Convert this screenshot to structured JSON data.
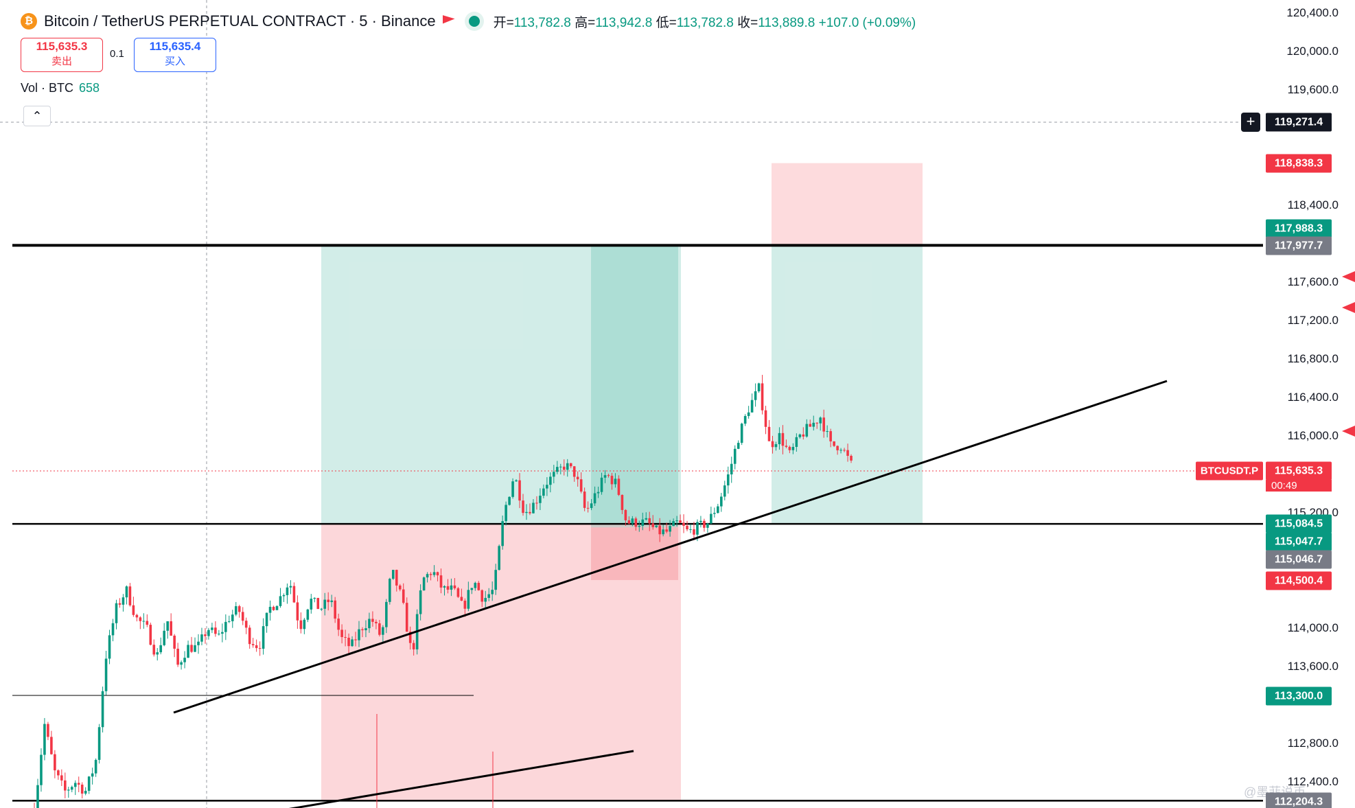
{
  "header": {
    "coin_icon": "bitcoin-icon",
    "symbol_title": "Bitcoin / TetherUS PERPETUAL CONTRACT · 5 · Binance",
    "ohlc": {
      "open_label": "开=",
      "open": "113,782.8",
      "high_label": "高=",
      "high": "113,942.8",
      "low_label": "低=",
      "low": "113,782.8",
      "close_label": "收=",
      "close": "113,889.8",
      "change": "+107.0 (+0.09%)"
    },
    "colors": {
      "up": "#089981",
      "down": "#f23645",
      "accent": "#2962ff"
    }
  },
  "trade": {
    "sell_price": "115,635.3",
    "sell_label": "卖出",
    "spread": "0.1",
    "buy_price": "115,635.4",
    "buy_label": "买入"
  },
  "volume": {
    "label": "Vol · BTC",
    "value": "658"
  },
  "price_axis": {
    "ticks": [
      "120,400.0",
      "120,000.0",
      "119,600.0",
      "118,400.0",
      "117,600.0",
      "117,200.0",
      "116,800.0",
      "116,400.0",
      "116,000.0",
      "115,200.0",
      "114,000.0",
      "113,600.0",
      "112,800.0",
      "112,400.0"
    ],
    "crosshair_price": "119,271.4",
    "labels": [
      {
        "text": "118,838.3",
        "color": "#f23645"
      },
      {
        "text": "117,988.3",
        "color": "#089981"
      },
      {
        "text": "117,977.7",
        "color": "#787b86"
      },
      {
        "text": "115,084.5",
        "color": "#089981"
      },
      {
        "text": "115,047.7",
        "color": "#089981"
      },
      {
        "text": "115,046.7",
        "color": "#787b86"
      },
      {
        "text": "114,500.4",
        "color": "#f23645"
      },
      {
        "text": "113,300.0",
        "color": "#089981"
      },
      {
        "text": "112,204.3",
        "color": "#787b86"
      }
    ],
    "last_price": "115,635.3",
    "countdown": "00:49",
    "symbol_label": "BTCUSDT.P"
  },
  "chart_data": {
    "type": "candlestick",
    "timeframe": "5",
    "ylim": [
      112200,
      120500
    ],
    "price_path": [
      112100,
      113000,
      112500,
      112300,
      112400,
      112300,
      112600,
      113700,
      114200,
      114400,
      114100,
      114000,
      113700,
      114100,
      113600,
      113800,
      113800,
      114000,
      113900,
      114100,
      114200,
      113900,
      113800,
      114200,
      114300,
      114500,
      114000,
      114300,
      114200,
      114300,
      113900,
      113800,
      114000,
      114100,
      113900,
      114600,
      114300,
      113700,
      114500,
      114600,
      114400,
      114400,
      114200,
      114500,
      114300,
      114400,
      115200,
      115600,
      115200,
      115300,
      115500,
      115600,
      115700,
      115600,
      115200,
      115400,
      115600,
      115500,
      115100,
      115100,
      115100,
      115000,
      115000,
      115100,
      115000,
      115050,
      115100,
      115300,
      115600,
      116000,
      116300,
      116500,
      115900,
      116000,
      115800,
      116000,
      116100,
      116200,
      115900,
      115900,
      115700
    ],
    "volume_spikes": [
      1.0,
      0.6
    ],
    "positions": [
      {
        "kind": "long",
        "entry": 115084.5,
        "target": 117977.7,
        "stop": 112204.3
      },
      {
        "kind": "long",
        "entry": 115047.7,
        "target": 117977.7,
        "stop": 114500.4
      },
      {
        "kind": "long",
        "entry": 115084.5,
        "target": 117988.3,
        "stop": 118838.3
      }
    ],
    "horizontal_levels": [
      117988.3,
      117977.7,
      115084.5,
      113300.0,
      112204.3
    ],
    "last_price": 115635.3
  },
  "watermark": "@墨菲说币"
}
